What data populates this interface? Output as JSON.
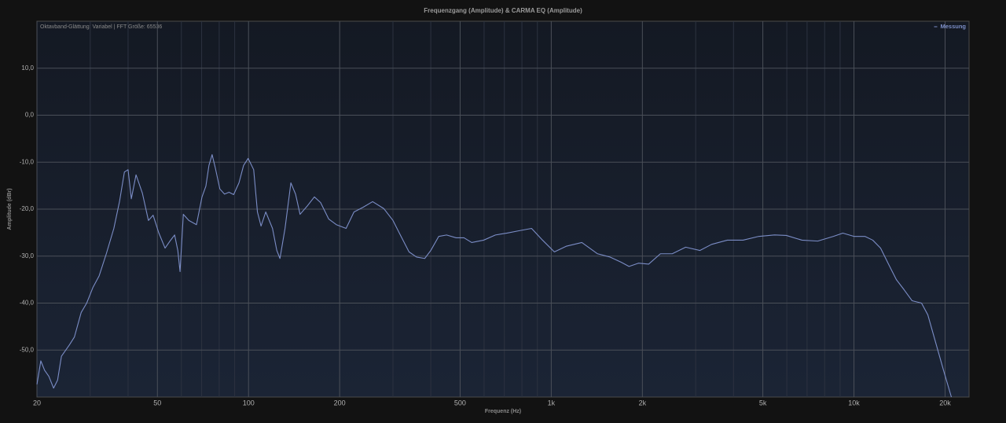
{
  "chart_data": {
    "type": "line",
    "title": "Frequenzgang (Amplitude) & CARMA EQ (Amplitude)",
    "annotation": "Oktavband-Glättung: Variabel | FFT Größe: 65536",
    "xlabel": "Frequenz (Hz)",
    "ylabel": "Amplitude (dBr)",
    "xscale": "log",
    "grid": true,
    "legend": "upper right",
    "xlim": [
      20,
      24000
    ],
    "ylim": [
      -60,
      20
    ],
    "xticks": [
      20,
      50,
      100,
      200,
      500,
      {
        "value": 1000,
        "label": "1k"
      },
      {
        "value": 2000,
        "label": "2k"
      },
      {
        "value": 5000,
        "label": "5k"
      },
      {
        "value": 10000,
        "label": "10k"
      },
      {
        "value": 20000,
        "label": "20k"
      }
    ],
    "xgrid_minor": [
      30,
      40,
      60,
      70,
      80,
      90,
      300,
      400,
      600,
      700,
      800,
      900,
      3000,
      4000,
      6000,
      7000,
      8000,
      9000
    ],
    "yticks": [
      {
        "value": 10,
        "label": "10,0"
      },
      {
        "value": 0,
        "label": "0,0"
      },
      {
        "value": -10,
        "label": "-10,0"
      },
      {
        "value": -20,
        "label": "-20,0"
      },
      {
        "value": -30,
        "label": "-30,0"
      },
      {
        "value": -40,
        "label": "-40,0"
      },
      {
        "value": -50,
        "label": "-50,0"
      }
    ],
    "x": [
      20,
      20.6,
      21.2,
      21.9,
      22.7,
      23.4,
      24.1,
      25.6,
      26.6,
      28.0,
      29.2,
      30.6,
      32.1,
      33.9,
      35.9,
      37.5,
      38.9,
      40.0,
      41.0,
      42.5,
      44.6,
      46.7,
      48.4,
      50.5,
      53.0,
      55.0,
      57.0,
      58.4,
      59.4,
      60.9,
      63.5,
      67.3,
      70.2,
      72.3,
      74.0,
      75.8,
      77.6,
      80.4,
      83.3,
      86.2,
      89.3,
      93.0,
      96.3,
      99.7,
      104,
      107,
      110,
      114,
      120,
      124,
      127,
      132,
      138,
      143,
      148,
      156,
      165,
      173,
      184,
      195,
      210,
      223,
      239,
      257,
      280,
      300,
      319,
      339,
      359,
      382,
      400,
      425,
      451,
      485,
      515,
      546,
      598,
      654,
      715,
      782,
      861,
      936,
      1024,
      1120,
      1262,
      1422,
      1565,
      1702,
      1807,
      1941,
      2098,
      2294,
      2510,
      2780,
      3096,
      3386,
      3816,
      4302,
      4848,
      5464,
      5976,
      6734,
      7592,
      8556,
      9188,
      10000,
      10868,
      11536,
      12246,
      13004,
      13804,
      14658,
      15562,
      16718,
      17538,
      18616,
      19762,
      20980
    ],
    "series": [
      {
        "name": "Messung",
        "color": "#7b8dc6",
        "values": [
          -57.3,
          -52.3,
          -54.3,
          -55.6,
          -58.1,
          -56.4,
          -51.3,
          -48.9,
          -47.2,
          -42.0,
          -40.0,
          -36.7,
          -34.2,
          -29.5,
          -24.1,
          -18.3,
          -12.1,
          -11.6,
          -17.8,
          -12.7,
          -16.6,
          -22.4,
          -21.3,
          -25.0,
          -28.3,
          -26.8,
          -25.5,
          -28.8,
          -33.3,
          -21.1,
          -22.4,
          -23.3,
          -17.4,
          -15.1,
          -10.7,
          -8.4,
          -11.1,
          -15.7,
          -16.8,
          -16.4,
          -16.9,
          -14.4,
          -10.7,
          -9.2,
          -11.6,
          -20.6,
          -23.6,
          -20.6,
          -24.1,
          -28.8,
          -30.5,
          -24.1,
          -14.4,
          -16.8,
          -21.1,
          -19.4,
          -17.4,
          -18.6,
          -22.1,
          -23.3,
          -24.1,
          -20.6,
          -19.6,
          -18.4,
          -19.9,
          -22.4,
          -25.8,
          -29.1,
          -30.2,
          -30.5,
          -28.8,
          -25.8,
          -25.5,
          -26.1,
          -26.1,
          -27.1,
          -26.6,
          -25.5,
          -25.1,
          -24.6,
          -24.1,
          -26.6,
          -29.1,
          -27.9,
          -27.1,
          -29.5,
          -30.2,
          -31.3,
          -32.2,
          -31.5,
          -31.7,
          -29.5,
          -29.5,
          -28.1,
          -28.8,
          -27.5,
          -26.6,
          -26.6,
          -25.8,
          -25.5,
          -25.6,
          -26.6,
          -26.8,
          -25.8,
          -25.1,
          -25.8,
          -25.8,
          -26.6,
          -28.3,
          -31.7,
          -35.0,
          -37.2,
          -39.5,
          -40.0,
          -42.5,
          -48.4,
          -54.3,
          -60.0
        ]
      }
    ]
  }
}
